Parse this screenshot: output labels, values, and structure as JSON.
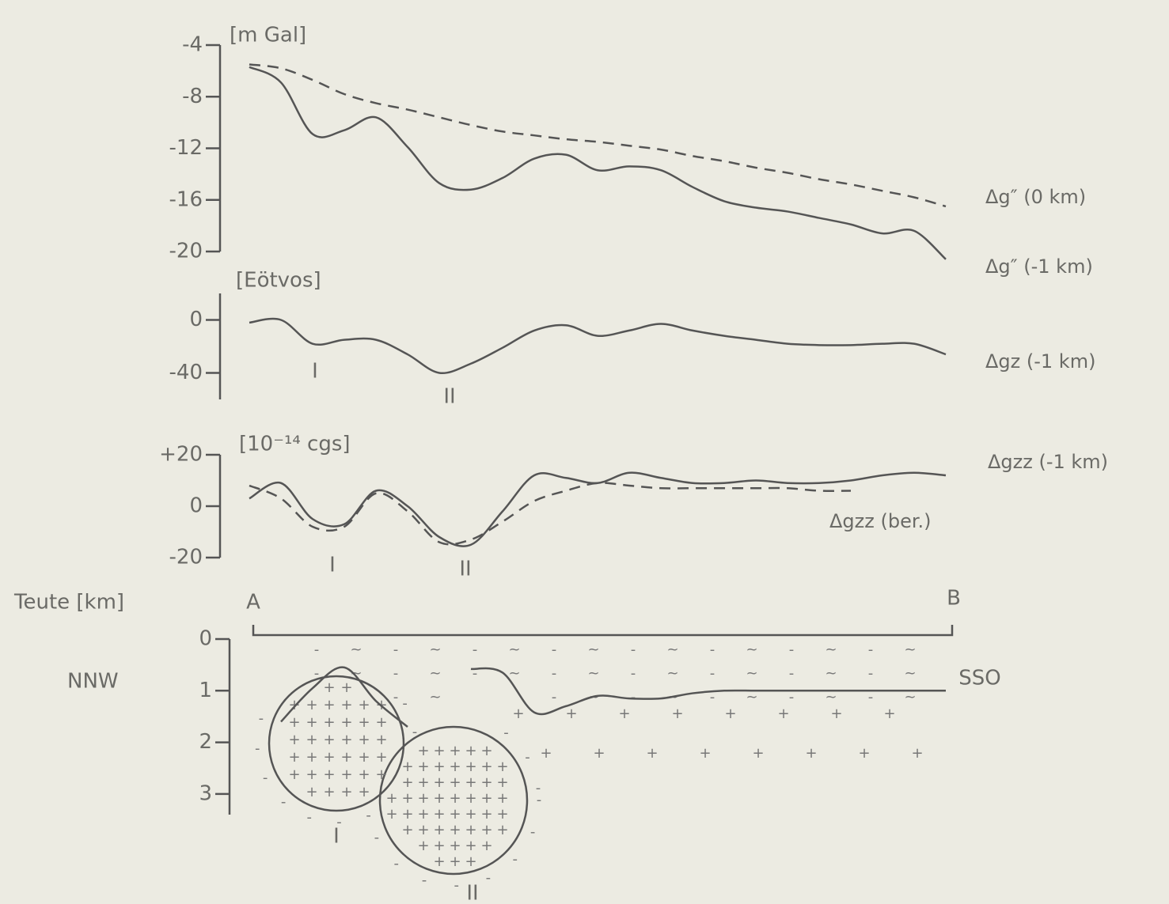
{
  "chart_data": [
    {
      "type": "line",
      "ylabel": "[m Gal]",
      "categories": [
        null,
        null,
        null,
        null,
        null,
        null,
        null,
        null,
        null,
        null,
        null,
        null,
        null,
        null,
        null,
        null,
        null,
        null,
        null,
        null,
        null,
        null,
        null
      ],
      "ylim": [
        -20,
        -4
      ],
      "yticks": [
        -4,
        -8,
        -12,
        -16,
        -20
      ],
      "series": [
        {
          "name": "Δg″ (0 km)",
          "color": "#555555",
          "style": "dashed",
          "values": [
            -5.5,
            -5.8,
            -6.7,
            -7.8,
            -8.5,
            -9.0,
            -9.6,
            -10.2,
            -10.7,
            -11.0,
            -11.3,
            -11.5,
            -11.8,
            -12.1,
            -12.6,
            -13.0,
            -13.5,
            -13.9,
            -14.4,
            -14.8,
            -15.3,
            -15.8,
            -16.5
          ]
        },
        {
          "name": "Δg″ (-1 km)",
          "color": "#555555",
          "style": "solid",
          "values": [
            -5.7,
            -6.9,
            -10.9,
            -10.6,
            -9.6,
            -11.9,
            -14.7,
            -15.2,
            -14.3,
            -12.8,
            -12.5,
            -13.7,
            -13.4,
            -13.7,
            -15.0,
            -16.1,
            -16.6,
            -16.9,
            -17.4,
            -17.9,
            -18.6,
            -18.4,
            -20.6
          ]
        }
      ]
    },
    {
      "type": "line",
      "ylabel": "[Eötvos]",
      "categories": [
        null,
        null,
        null,
        null,
        null,
        null,
        null,
        null,
        null,
        null,
        null,
        null,
        null,
        null,
        null,
        null,
        null,
        null,
        null,
        null,
        null,
        null,
        null
      ],
      "ylim": [
        -60,
        20
      ],
      "yticks": [
        0,
        -40
      ],
      "series": [
        {
          "name": "Δgz (-1 km)",
          "color": "#555555",
          "style": "solid",
          "values": [
            -2,
            0,
            -18,
            -15,
            -15,
            -26,
            -40,
            -33,
            -21,
            -8,
            -4,
            -12,
            -8,
            -3,
            -8,
            -12,
            -15,
            -18,
            -19,
            -19,
            -18,
            -18,
            -26
          ]
        }
      ],
      "annotations": [
        "I",
        "II"
      ]
    },
    {
      "type": "line",
      "ylabel": "[10⁻¹⁴ cgs]",
      "categories": [
        null,
        null,
        null,
        null,
        null,
        null,
        null,
        null,
        null,
        null,
        null,
        null,
        null,
        null,
        null,
        null,
        null,
        null,
        null,
        null,
        null,
        null,
        null
      ],
      "ylim": [
        -20,
        20
      ],
      "yticks": [
        {
          "value": 20,
          "label": "+20"
        },
        0,
        -20
      ],
      "series": [
        {
          "name": "Δgzz (-1 km)",
          "color": "#555555",
          "style": "solid",
          "values": [
            3,
            9,
            -5,
            -7,
            6,
            0,
            -12,
            -15,
            -2,
            12,
            11,
            9,
            13,
            11,
            9,
            9,
            10,
            9,
            9,
            10,
            12,
            13,
            12
          ]
        },
        {
          "name": "Δgzz (ber.)",
          "color": "#555555",
          "style": "dashed",
          "values": [
            8,
            3,
            -8,
            -8,
            5,
            -2,
            -14,
            -13,
            -6,
            2,
            6,
            9,
            8,
            7,
            7,
            7,
            7,
            7,
            6,
            6,
            null,
            null,
            null
          ]
        }
      ],
      "annotations": [
        "I",
        "II"
      ]
    },
    {
      "type": "line",
      "ylabel": "Teute [km]",
      "categories": [
        null,
        null,
        null,
        null,
        null,
        null,
        null,
        null,
        null,
        null,
        null,
        null,
        null,
        null,
        null,
        null,
        null,
        null,
        null,
        null,
        null,
        null,
        null
      ],
      "ylim": [
        3.4,
        0
      ],
      "yticks": [
        0,
        1,
        2,
        3
      ],
      "series": [
        {
          "color": "#555555",
          "style": "solid",
          "values": [
            null,
            1.6,
            0.95,
            0.55,
            1.2,
            1.7,
            null,
            0.58,
            0.65,
            1.42,
            1.3,
            1.1,
            1.15,
            1.15,
            1.05,
            1.0,
            1.0,
            1.0,
            1.0,
            1.0,
            1.0,
            1.0,
            1.0
          ]
        }
      ],
      "annotations": [
        "A",
        "B",
        "NNW",
        "SSO",
        "I",
        "II"
      ]
    }
  ]
}
